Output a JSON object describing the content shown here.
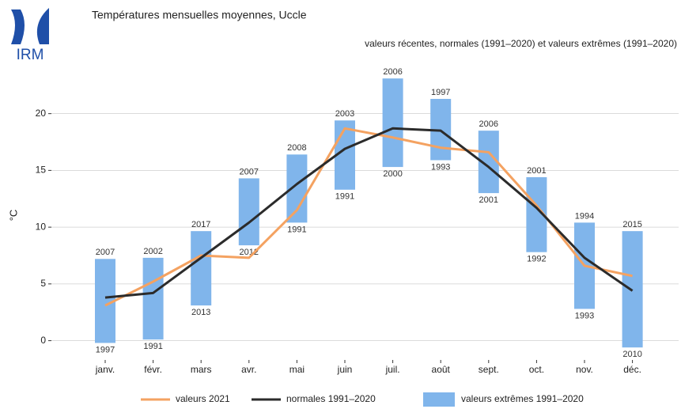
{
  "logo": "IRM",
  "chart_data": {
    "type": "combo",
    "title": "Températures mensuelles moyennes, Uccle",
    "subtitle": "valeurs récentes, normales (1991–2020) et valeurs extrêmes (1991–2020)",
    "ylabel": "°C",
    "categories": [
      "janv.",
      "févr.",
      "mars",
      "avr.",
      "mai",
      "juin",
      "juil.",
      "août",
      "sept.",
      "oct.",
      "nov.",
      "déc."
    ],
    "ylim": [
      -1.7,
      23.6
    ],
    "yticks": [
      0,
      5,
      10,
      15,
      20
    ],
    "grid": true,
    "legend": "bottom",
    "series": [
      {
        "name": "valeurs extrêmes 1991–2020",
        "type": "range",
        "color": "#80b5eb",
        "low": [
          -0.2,
          0.1,
          3.1,
          8.4,
          10.4,
          13.3,
          15.3,
          15.9,
          13.0,
          7.8,
          2.8,
          -0.6
        ],
        "high": [
          7.2,
          7.3,
          9.65,
          14.3,
          16.4,
          19.4,
          23.1,
          21.3,
          18.5,
          14.4,
          10.4,
          9.65
        ],
        "low_years": [
          "1997",
          "1991",
          "2013",
          "2012",
          "1991",
          "1991",
          "2000",
          "1993",
          "2001",
          "1992",
          "1993",
          "2010"
        ],
        "high_years": [
          "2007",
          "2002",
          "2017",
          "2007",
          "2008",
          "2003",
          "2006",
          "1997",
          "2006",
          "2001",
          "1994",
          "2015"
        ]
      },
      {
        "name": "valeurs 2021",
        "type": "line",
        "color": "#f4a261",
        "values": [
          3.1,
          5.2,
          7.5,
          7.3,
          11.5,
          18.7,
          17.9,
          17.0,
          16.6,
          11.9,
          6.6,
          5.7
        ]
      },
      {
        "name": "normales 1991–2020",
        "type": "line",
        "color": "#2b2b2b",
        "values": [
          3.8,
          4.2,
          7.3,
          10.4,
          13.8,
          16.9,
          18.7,
          18.5,
          15.3,
          11.7,
          7.3,
          4.4
        ]
      }
    ]
  }
}
